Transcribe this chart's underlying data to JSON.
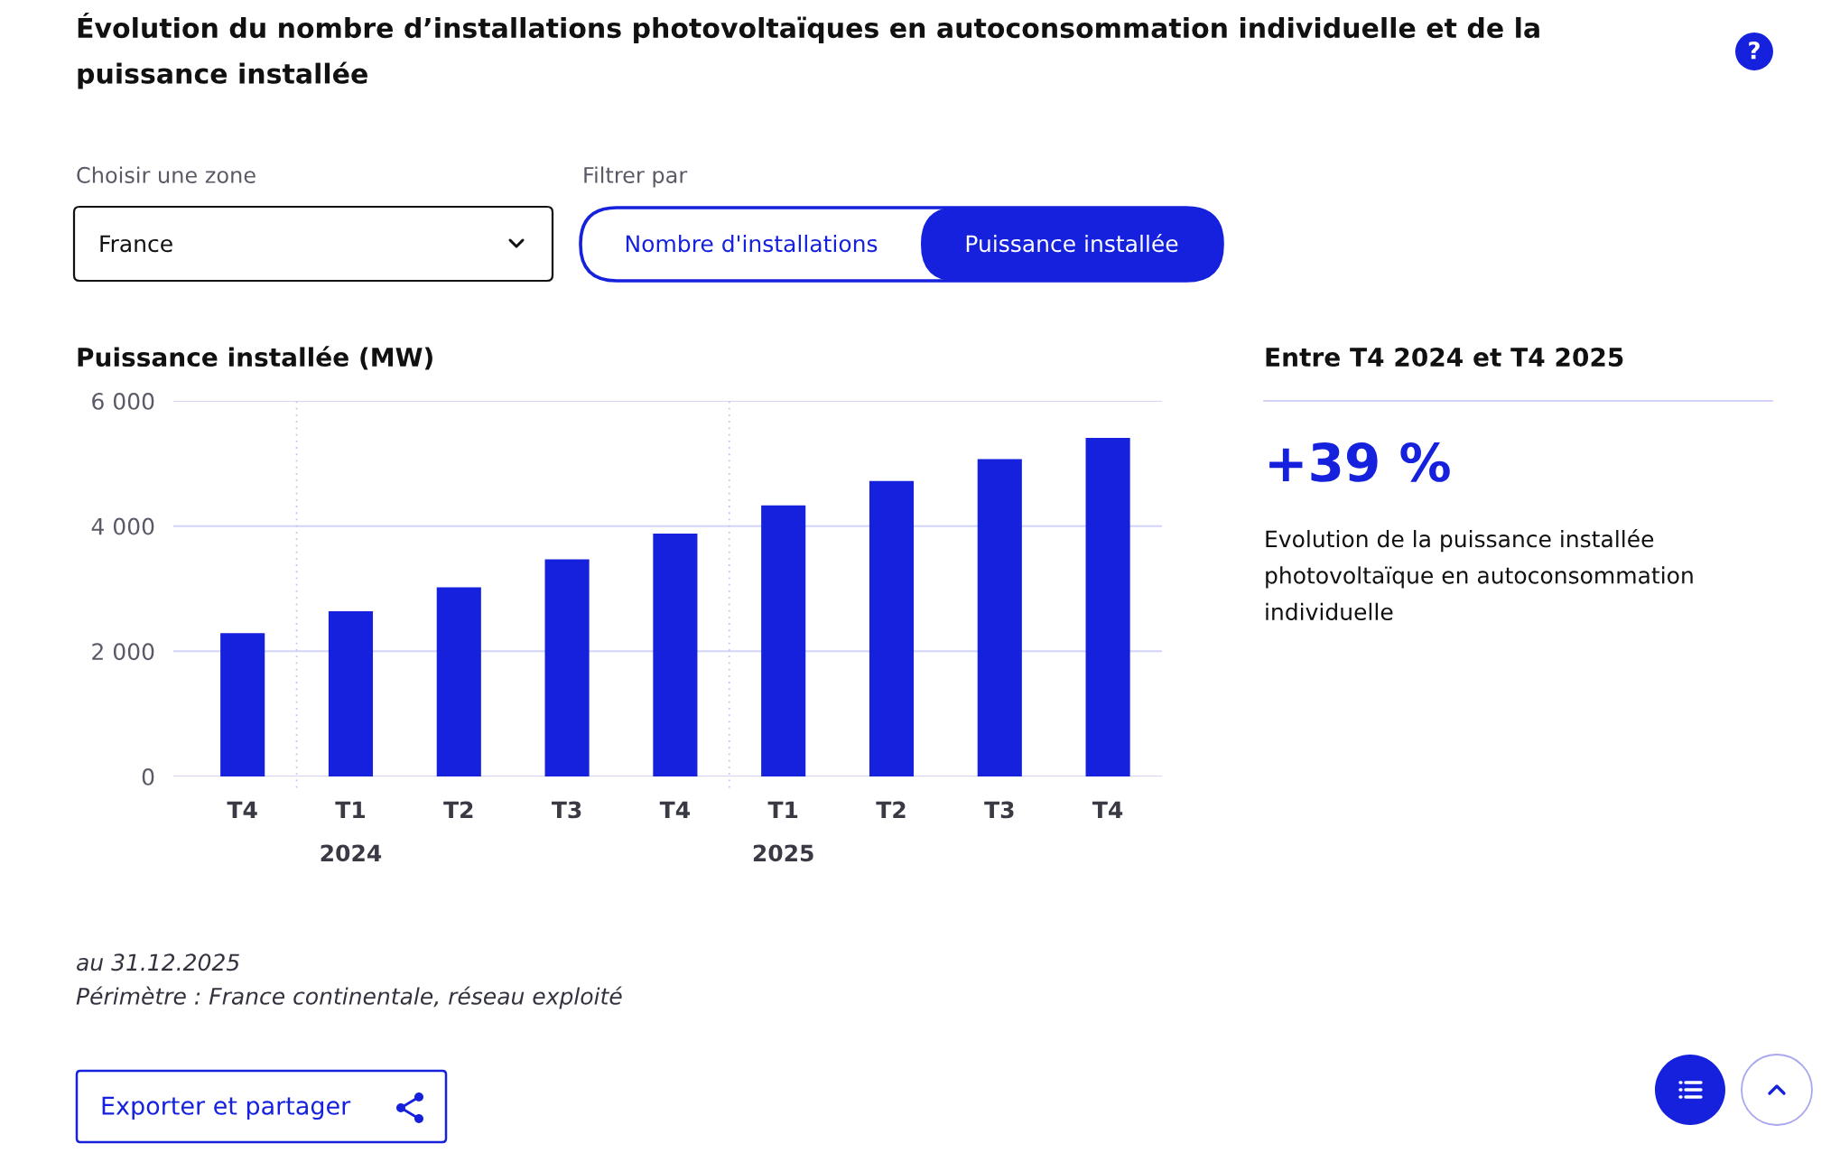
{
  "chart_data": [
    {
      "type": "bar",
      "title": "Évolution du nombre d’installations photovoltaïques en autoconsommation individuelle et de la puissance installée",
      "subtitle": "Puissance installée (MW)",
      "categories": [
        "T4",
        "T1\n2024",
        "T2",
        "T3",
        "T4",
        "T1\n2025",
        "T2",
        "T3",
        "T4"
      ],
      "values": [
        2290,
        2640,
        3020,
        3470,
        3880,
        4330,
        4720,
        5070,
        5410
      ],
      "color": "#1521dc",
      "ylim": [
        0,
        6000
      ],
      "yticks": [
        0,
        {
          "value": 2000,
          "label": "2 000"
        },
        {
          "value": 4000,
          "label": "4 000"
        },
        {
          "value": 6000,
          "label": "6 000"
        }
      ],
      "grid": "y",
      "annotations": [
        "?",
        "Choisir une zone",
        "France",
        "Filtrer par",
        "Nombre d'installations",
        "Puissance installée",
        "Exporter et partager",
        "au 31.12.2025",
        "Périmètre : France continentale, réseau exploité"
      ]
    },
    {
      "type": "other",
      "title": "Entre T4 2024 et T4 2025",
      "annotations": [
        "+39 %",
        "Evolution de la puissance installée photovoltaïque en autoconsommation individuelle"
      ]
    }
  ]
}
